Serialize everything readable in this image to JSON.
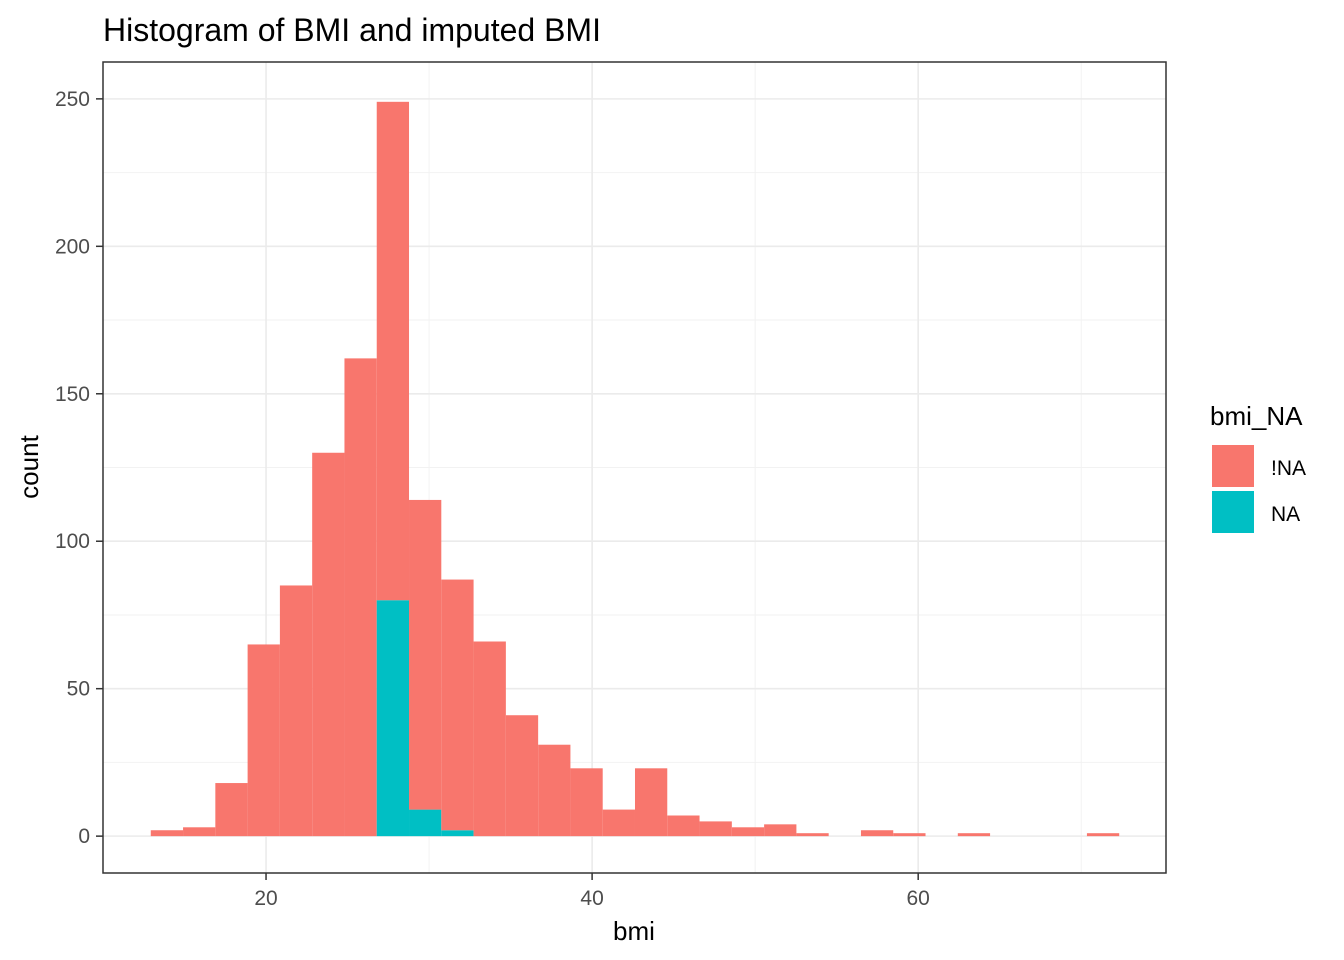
{
  "chart_data": {
    "type": "bar",
    "subtype": "stacked histogram",
    "title": "Histogram of BMI and imputed BMI",
    "xlabel": "bmi",
    "ylabel": "count",
    "xlim": [
      10.0,
      75.2
    ],
    "ylim": [
      -12.5,
      262.5
    ],
    "x_ticks": [
      20,
      40,
      60
    ],
    "y_ticks": [
      0,
      50,
      100,
      150,
      200,
      250
    ],
    "grid": true,
    "bin_width": 1.98,
    "bin_starts": [
      12.93,
      14.91,
      16.89,
      18.87,
      20.85,
      22.83,
      24.81,
      26.79,
      28.77,
      30.75,
      32.73,
      34.71,
      36.69,
      38.67,
      40.65,
      42.63,
      44.61,
      46.59,
      48.57,
      50.55,
      52.53,
      54.51,
      56.49,
      58.47,
      60.45,
      62.43,
      64.41,
      66.39,
      68.39,
      70.35
    ],
    "legend": {
      "title": "bmi_NA",
      "position": "right",
      "entries": [
        "!NA",
        "NA"
      ]
    },
    "series": [
      {
        "name": "!NA",
        "color": "#F8766D",
        "values": [
          2,
          3,
          18,
          65,
          85,
          130,
          162,
          169,
          105,
          85,
          66,
          41,
          31,
          23,
          9,
          23,
          7,
          5,
          3,
          4,
          1,
          0,
          2,
          1,
          0,
          1,
          0,
          0,
          0,
          1
        ]
      },
      {
        "name": "NA",
        "color": "#00BFC4",
        "values": [
          0,
          0,
          0,
          0,
          0,
          0,
          0,
          80,
          9,
          2,
          0,
          0,
          0,
          0,
          0,
          0,
          0,
          0,
          0,
          0,
          0,
          0,
          0,
          0,
          0,
          0,
          0,
          0,
          0,
          0
        ]
      }
    ]
  }
}
